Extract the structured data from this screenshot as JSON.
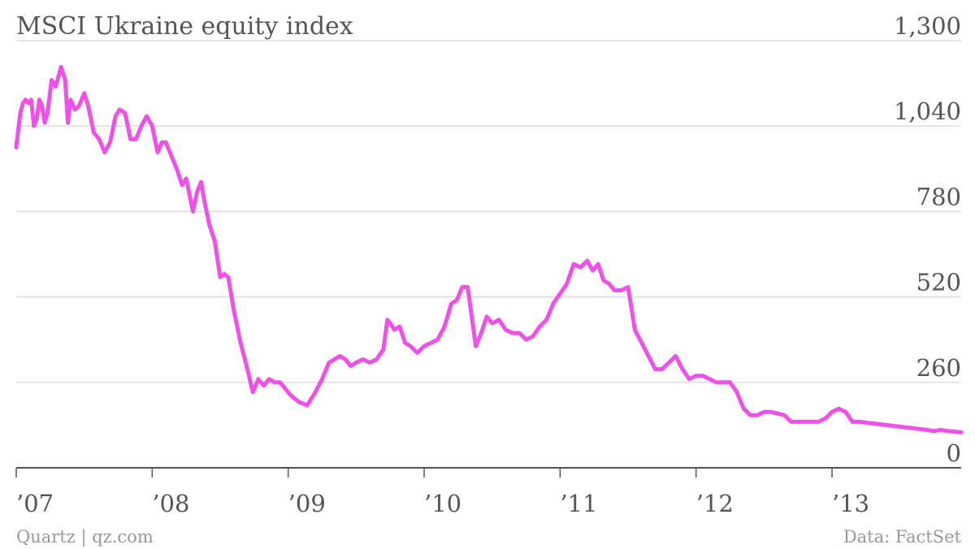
{
  "chart_data": {
    "type": "line",
    "title": "MSCI Ukraine equity index",
    "xlabel": "",
    "ylabel": "",
    "ylim": [
      0,
      1300
    ],
    "yticks": [
      "1,300",
      "1,040",
      "780",
      "520",
      "260",
      "0"
    ],
    "ytick_values": [
      1300,
      1040,
      780,
      520,
      260,
      0
    ],
    "xticks": [
      "’07",
      "’08",
      "’09",
      "’10",
      "’11",
      "’12",
      "’13"
    ],
    "xtick_values": [
      2007,
      2008,
      2009,
      2010,
      2011,
      2012,
      2013
    ],
    "xlim": [
      2007.0,
      2013.95
    ],
    "grid": true,
    "line_color": "#f050e8",
    "series": [
      {
        "values": [
          [
            2007.0,
            975
          ],
          [
            2007.03,
            1080
          ],
          [
            2007.05,
            1110
          ],
          [
            2007.07,
            1120
          ],
          [
            2007.09,
            1110
          ],
          [
            2007.11,
            1120
          ],
          [
            2007.13,
            1040
          ],
          [
            2007.15,
            1060
          ],
          [
            2007.17,
            1120
          ],
          [
            2007.19,
            1100
          ],
          [
            2007.21,
            1050
          ],
          [
            2007.23,
            1080
          ],
          [
            2007.26,
            1180
          ],
          [
            2007.29,
            1160
          ],
          [
            2007.33,
            1220
          ],
          [
            2007.36,
            1180
          ],
          [
            2007.38,
            1050
          ],
          [
            2007.4,
            1120
          ],
          [
            2007.43,
            1090
          ],
          [
            2007.46,
            1100
          ],
          [
            2007.5,
            1140
          ],
          [
            2007.53,
            1100
          ],
          [
            2007.57,
            1020
          ],
          [
            2007.61,
            1000
          ],
          [
            2007.65,
            960
          ],
          [
            2007.69,
            990
          ],
          [
            2007.73,
            1070
          ],
          [
            2007.76,
            1090
          ],
          [
            2007.8,
            1080
          ],
          [
            2007.84,
            1000
          ],
          [
            2007.88,
            1000
          ],
          [
            2007.92,
            1040
          ],
          [
            2007.96,
            1070
          ],
          [
            2008.0,
            1040
          ],
          [
            2008.04,
            960
          ],
          [
            2008.07,
            990
          ],
          [
            2008.1,
            990
          ],
          [
            2008.14,
            950
          ],
          [
            2008.18,
            910
          ],
          [
            2008.22,
            860
          ],
          [
            2008.25,
            880
          ],
          [
            2008.3,
            780
          ],
          [
            2008.33,
            840
          ],
          [
            2008.36,
            870
          ],
          [
            2008.38,
            820
          ],
          [
            2008.42,
            740
          ],
          [
            2008.46,
            690
          ],
          [
            2008.5,
            580
          ],
          [
            2008.53,
            590
          ],
          [
            2008.56,
            580
          ],
          [
            2008.6,
            480
          ],
          [
            2008.65,
            380
          ],
          [
            2008.7,
            300
          ],
          [
            2008.74,
            230
          ],
          [
            2008.78,
            270
          ],
          [
            2008.82,
            250
          ],
          [
            2008.86,
            270
          ],
          [
            2008.9,
            260
          ],
          [
            2008.94,
            260
          ],
          [
            2008.98,
            240
          ],
          [
            2009.02,
            220
          ],
          [
            2009.08,
            200
          ],
          [
            2009.14,
            190
          ],
          [
            2009.2,
            230
          ],
          [
            2009.25,
            270
          ],
          [
            2009.3,
            320
          ],
          [
            2009.34,
            330
          ],
          [
            2009.38,
            340
          ],
          [
            2009.42,
            330
          ],
          [
            2009.46,
            310
          ],
          [
            2009.5,
            320
          ],
          [
            2009.55,
            330
          ],
          [
            2009.6,
            320
          ],
          [
            2009.65,
            330
          ],
          [
            2009.7,
            360
          ],
          [
            2009.73,
            450
          ],
          [
            2009.75,
            440
          ],
          [
            2009.78,
            420
          ],
          [
            2009.82,
            430
          ],
          [
            2009.86,
            380
          ],
          [
            2009.9,
            370
          ],
          [
            2009.95,
            350
          ],
          [
            2010.0,
            370
          ],
          [
            2010.05,
            380
          ],
          [
            2010.1,
            390
          ],
          [
            2010.15,
            430
          ],
          [
            2010.2,
            500
          ],
          [
            2010.24,
            510
          ],
          [
            2010.28,
            550
          ],
          [
            2010.32,
            550
          ],
          [
            2010.35,
            460
          ],
          [
            2010.38,
            370
          ],
          [
            2010.42,
            410
          ],
          [
            2010.46,
            460
          ],
          [
            2010.5,
            440
          ],
          [
            2010.55,
            450
          ],
          [
            2010.6,
            420
          ],
          [
            2010.65,
            410
          ],
          [
            2010.7,
            410
          ],
          [
            2010.75,
            390
          ],
          [
            2010.8,
            400
          ],
          [
            2010.85,
            430
          ],
          [
            2010.9,
            450
          ],
          [
            2010.95,
            500
          ],
          [
            2011.0,
            530
          ],
          [
            2011.05,
            560
          ],
          [
            2011.1,
            620
          ],
          [
            2011.15,
            610
          ],
          [
            2011.2,
            630
          ],
          [
            2011.24,
            600
          ],
          [
            2011.28,
            620
          ],
          [
            2011.32,
            570
          ],
          [
            2011.36,
            560
          ],
          [
            2011.4,
            540
          ],
          [
            2011.45,
            540
          ],
          [
            2011.5,
            550
          ],
          [
            2011.55,
            420
          ],
          [
            2011.6,
            380
          ],
          [
            2011.65,
            340
          ],
          [
            2011.7,
            300
          ],
          [
            2011.75,
            300
          ],
          [
            2011.8,
            320
          ],
          [
            2011.85,
            340
          ],
          [
            2011.9,
            300
          ],
          [
            2011.95,
            270
          ],
          [
            2012.0,
            280
          ],
          [
            2012.05,
            280
          ],
          [
            2012.1,
            270
          ],
          [
            2012.15,
            260
          ],
          [
            2012.2,
            260
          ],
          [
            2012.25,
            260
          ],
          [
            2012.3,
            230
          ],
          [
            2012.35,
            180
          ],
          [
            2012.4,
            160
          ],
          [
            2012.45,
            160
          ],
          [
            2012.5,
            170
          ],
          [
            2012.55,
            170
          ],
          [
            2012.6,
            165
          ],
          [
            2012.65,
            160
          ],
          [
            2012.7,
            140
          ],
          [
            2012.75,
            140
          ],
          [
            2012.8,
            140
          ],
          [
            2012.85,
            140
          ],
          [
            2012.9,
            140
          ],
          [
            2012.95,
            150
          ],
          [
            2013.0,
            170
          ],
          [
            2013.05,
            180
          ],
          [
            2013.1,
            170
          ],
          [
            2013.15,
            140
          ],
          [
            2013.2,
            140
          ],
          [
            2013.3,
            135
          ],
          [
            2013.4,
            130
          ],
          [
            2013.5,
            125
          ],
          [
            2013.6,
            120
          ],
          [
            2013.7,
            115
          ],
          [
            2013.75,
            112
          ],
          [
            2013.8,
            115
          ],
          [
            2013.85,
            112
          ],
          [
            2013.9,
            110
          ],
          [
            2013.95,
            108
          ]
        ]
      }
    ]
  },
  "footer": {
    "source_left": "Quartz | qz.com",
    "source_right": "Data: FactSet"
  }
}
